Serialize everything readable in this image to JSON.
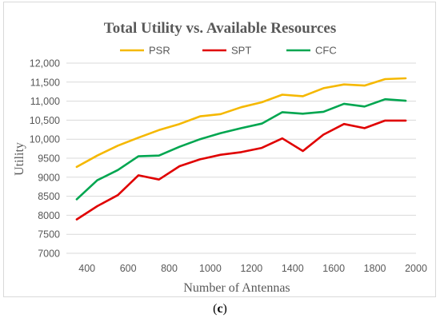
{
  "chart_data": {
    "type": "line",
    "title": "Total Utility vs. Available Resources",
    "xlabel": "Number of Antennas",
    "ylabel": "Utility",
    "xlim": [
      300,
      2000
    ],
    "ylim": [
      7000,
      12000
    ],
    "x_ticks": [
      400,
      600,
      800,
      1000,
      1200,
      1400,
      1600,
      1800,
      2000
    ],
    "y_ticks": [
      7000,
      7500,
      8000,
      8500,
      9000,
      9500,
      10000,
      10500,
      11000,
      11500,
      12000
    ],
    "y_tick_labels": [
      "7000",
      "7500",
      "8000",
      "8500",
      "9000",
      "9500",
      "10,000",
      "10,500",
      "11,000",
      "11,500",
      "12,000"
    ],
    "grid": true,
    "legend_position": "top",
    "x": [
      350,
      450,
      550,
      650,
      750,
      850,
      950,
      1050,
      1150,
      1250,
      1350,
      1450,
      1550,
      1650,
      1750,
      1850,
      1950
    ],
    "series": [
      {
        "name": "PSR",
        "color": "#f5b800",
        "values": [
          9270,
          9570,
          9830,
          10040,
          10240,
          10400,
          10600,
          10660,
          10840,
          10970,
          11170,
          11130,
          11340,
          11440,
          11410,
          11580,
          11600
        ]
      },
      {
        "name": "SPT",
        "color": "#e00000",
        "values": [
          7890,
          8240,
          8530,
          9050,
          8940,
          9290,
          9470,
          9590,
          9660,
          9770,
          10020,
          9690,
          10120,
          10400,
          10290,
          10490,
          10490
        ]
      },
      {
        "name": "CFC",
        "color": "#00a650",
        "values": [
          8420,
          8920,
          9190,
          9550,
          9570,
          9800,
          10000,
          10160,
          10290,
          10410,
          10710,
          10670,
          10720,
          10930,
          10860,
          11050,
          11010
        ]
      }
    ]
  },
  "panel_label": "c"
}
